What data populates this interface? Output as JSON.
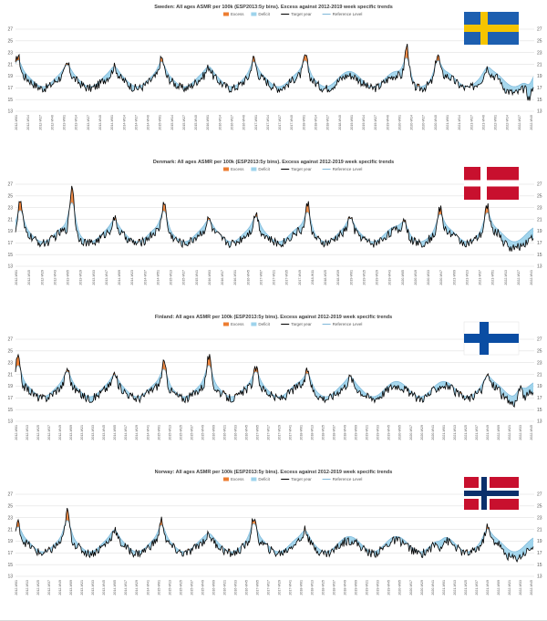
{
  "legend": {
    "excess": "Excess",
    "deficit": "Deficit",
    "target": "Target year",
    "reference": "Reference Level"
  },
  "colors": {
    "excess": "#ed7d31",
    "deficit": "#9dd3ec",
    "target": "#000000",
    "reference": "#7fb8d9",
    "grid": "#d9d9d9"
  },
  "chart_data": [
    {
      "type": "area",
      "country": "Sweden",
      "flag": "sweden-flag",
      "title": "Sweden: All ages ASMR per 100k (ESP2013:5y bins). Excess against 2012-2019 week specific trends",
      "ylim": [
        13,
        27
      ],
      "yticks": [
        13,
        15,
        17,
        19,
        21,
        23,
        25,
        27
      ],
      "series": [
        {
          "name": "Excess"
        },
        {
          "name": "Deficit"
        },
        {
          "name": "Target year"
        },
        {
          "name": "Reference Level"
        }
      ],
      "peaks": [
        [
          2012.05,
          22.5
        ],
        [
          2013.1,
          21
        ],
        [
          2014.1,
          20.5
        ],
        [
          2015.1,
          22
        ],
        [
          2016.1,
          20.5
        ],
        [
          2017.05,
          22
        ],
        [
          2018.15,
          22.5
        ],
        [
          2019.1,
          19
        ],
        [
          2020.3,
          25
        ],
        [
          2020.95,
          23
        ],
        [
          2022.0,
          20.5
        ],
        [
          2022.9,
          16.5
        ]
      ],
      "x_ticks": [
        "2012-W01",
        "2012-W14",
        "2012-W27",
        "2012-W40",
        "2013-W01",
        "2013-W14",
        "2013-W27",
        "2013-W40",
        "2014-W01",
        "2014-W14",
        "2014-W27",
        "2014-W40",
        "2015-W01",
        "2015-W14",
        "2015-W27",
        "2015-W40",
        "2016-W01",
        "2016-W14",
        "2016-W27",
        "2016-W40",
        "2017-W01",
        "2017-W14",
        "2017-W27",
        "2017-W40",
        "2018-W01",
        "2018-W14",
        "2018-W27",
        "2018-W40",
        "2019-W01",
        "2019-W14",
        "2019-W27",
        "2019-W40",
        "2020-W01",
        "2020-W14",
        "2020-W27",
        "2020-W40",
        "2021-W01",
        "2021-W14",
        "2021-W27",
        "2021-W40",
        "2022-W01",
        "2022-W14",
        "2022-W27",
        "2022-W40"
      ]
    },
    {
      "type": "area",
      "country": "Denmark",
      "flag": "denmark-flag",
      "title": "Denmark: All ages ASMR per 100k (ESP2013:5y bins). Excess against 2012-2019 week specific trends",
      "ylim": [
        13,
        27
      ],
      "yticks": [
        13,
        15,
        17,
        19,
        21,
        23,
        25,
        27
      ],
      "series": [
        {
          "name": "Excess"
        },
        {
          "name": "Deficit"
        },
        {
          "name": "Target year"
        },
        {
          "name": "Reference Level"
        }
      ],
      "peaks": [
        [
          2012.1,
          24
        ],
        [
          2013.2,
          27
        ],
        [
          2014.1,
          21
        ],
        [
          2015.15,
          24
        ],
        [
          2016.1,
          21
        ],
        [
          2017.1,
          22
        ],
        [
          2018.2,
          24
        ],
        [
          2019.1,
          21.5
        ],
        [
          2020.25,
          21.5
        ],
        [
          2021.0,
          23
        ],
        [
          2022.0,
          23.5
        ],
        [
          2022.9,
          19
        ]
      ],
      "x_ticks": [
        "2012-W01",
        "2012-W15",
        "2012-W29",
        "2012-W43",
        "2013-W05",
        "2013-W19",
        "2013-W33",
        "2013-W47",
        "2014-W09",
        "2014-W23",
        "2014-W37",
        "2014-W51",
        "2015-W13",
        "2015-W27",
        "2015-W41",
        "2016-W03",
        "2016-W17",
        "2016-W31",
        "2016-W45",
        "2017-W07",
        "2017-W21",
        "2017-W35",
        "2017-W49",
        "2018-W11",
        "2018-W25",
        "2018-W39",
        "2019-W01",
        "2019-W15",
        "2019-W29",
        "2019-W43",
        "2020-W05",
        "2020-W19",
        "2020-W33",
        "2020-W47",
        "2021-W09",
        "2021-W23",
        "2021-W37",
        "2021-W51",
        "2022-W13",
        "2022-W27",
        "2022-W41"
      ]
    },
    {
      "type": "area",
      "country": "Finland",
      "flag": "finland-flag",
      "title": "Finland: All ages ASMR per 100k (ESP2013:5y bins). Excess against 2012-2019 week specific trends",
      "ylim": [
        13,
        27
      ],
      "yticks": [
        13,
        15,
        17,
        19,
        21,
        23,
        25,
        27
      ],
      "series": [
        {
          "name": "Excess"
        },
        {
          "name": "Deficit"
        },
        {
          "name": "Target year"
        },
        {
          "name": "Reference Level"
        }
      ],
      "peaks": [
        [
          2012.05,
          24
        ],
        [
          2013.1,
          22
        ],
        [
          2014.1,
          21
        ],
        [
          2015.15,
          23
        ],
        [
          2016.1,
          24
        ],
        [
          2017.1,
          22
        ],
        [
          2018.2,
          22
        ],
        [
          2019.1,
          20.5
        ],
        [
          2020.2,
          19
        ],
        [
          2021.0,
          19
        ],
        [
          2022.0,
          21
        ],
        [
          2022.7,
          21
        ]
      ],
      "x_ticks": [
        "2012-W01",
        "2012-W13",
        "2012-W25",
        "2012-W37",
        "2012-W49",
        "2013-W09",
        "2013-W21",
        "2013-W33",
        "2013-W45",
        "2014-W05",
        "2014-W17",
        "2014-W29",
        "2014-W41",
        "2015-W01",
        "2015-W13",
        "2015-W25",
        "2015-W37",
        "2015-W49",
        "2016-W09",
        "2016-W21",
        "2016-W33",
        "2016-W45",
        "2017-W05",
        "2017-W17",
        "2017-W29",
        "2017-W41",
        "2018-W01",
        "2018-W13",
        "2018-W25",
        "2018-W37",
        "2018-W49",
        "2019-W09",
        "2019-W21",
        "2019-W33",
        "2019-W45",
        "2020-W05",
        "2020-W17",
        "2020-W29",
        "2020-W41",
        "2021-W01",
        "2021-W13",
        "2021-W25",
        "2021-W37",
        "2021-W49",
        "2022-W09",
        "2022-W21",
        "2022-W33",
        "2022-W45"
      ]
    },
    {
      "type": "area",
      "country": "Norway",
      "flag": "norway-flag",
      "title": "Norway: All ages ASMR per 100k (ESP2013:5y bins). Excess against 2012-2019 week specific trends",
      "ylim": [
        13,
        27
      ],
      "yticks": [
        13,
        15,
        17,
        19,
        21,
        23,
        25,
        27
      ],
      "series": [
        {
          "name": "Excess"
        },
        {
          "name": "Deficit"
        },
        {
          "name": "Target year"
        },
        {
          "name": "Reference Level"
        }
      ],
      "peaks": [
        [
          2012.05,
          22
        ],
        [
          2013.1,
          24
        ],
        [
          2014.1,
          21
        ],
        [
          2015.1,
          22.5
        ],
        [
          2016.1,
          20
        ],
        [
          2017.05,
          23
        ],
        [
          2018.15,
          21
        ],
        [
          2019.1,
          19
        ],
        [
          2020.2,
          19
        ],
        [
          2021.0,
          18
        ],
        [
          2022.0,
          21.5
        ],
        [
          2022.8,
          19
        ]
      ],
      "x_ticks": [
        "2012-W01",
        "2012-W13",
        "2012-W25",
        "2012-W37",
        "2012-W49",
        "2013-W09",
        "2013-W21",
        "2013-W33",
        "2013-W45",
        "2014-W05",
        "2014-W17",
        "2014-W29",
        "2014-W41",
        "2015-W01",
        "2015-W13",
        "2015-W25",
        "2015-W37",
        "2015-W49",
        "2016-W09",
        "2016-W21",
        "2016-W33",
        "2016-W45",
        "2017-W05",
        "2017-W17",
        "2017-W29",
        "2017-W41",
        "2018-W01",
        "2018-W13",
        "2018-W25",
        "2018-W37",
        "2018-W49",
        "2019-W09",
        "2019-W21",
        "2019-W33",
        "2019-W45",
        "2020-W05",
        "2020-W17",
        "2020-W29",
        "2020-W41",
        "2021-W01",
        "2021-W13",
        "2021-W25",
        "2021-W37",
        "2021-W49",
        "2022-W09",
        "2022-W21",
        "2022-W33",
        "2022-W45"
      ]
    }
  ]
}
